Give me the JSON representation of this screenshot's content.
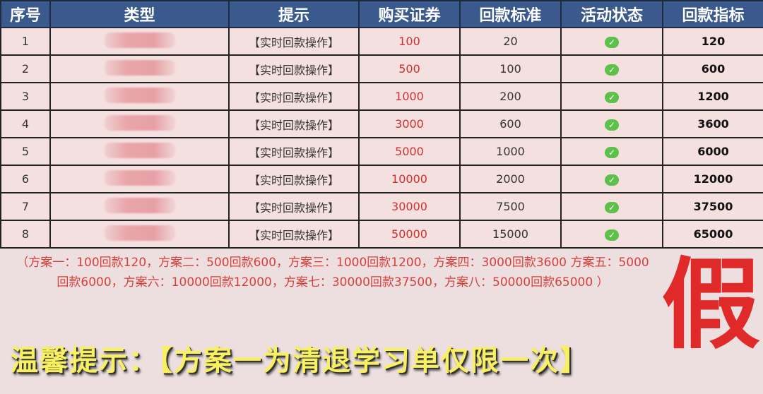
{
  "headers": [
    "序号",
    "类型",
    "提示",
    "购买证券",
    "回款标准",
    "活动状态",
    "回款指标"
  ],
  "rows": [
    {
      "no": "1",
      "hint": "【实时回款操作】",
      "buy": "100",
      "std": "20",
      "target": "120"
    },
    {
      "no": "2",
      "hint": "【实时回款操作】",
      "buy": "500",
      "std": "100",
      "target": "600"
    },
    {
      "no": "3",
      "hint": "【实时回款操作】",
      "buy": "1000",
      "std": "200",
      "target": "1200"
    },
    {
      "no": "4",
      "hint": "【实时回款操作】",
      "buy": "3000",
      "std": "600",
      "target": "3600"
    },
    {
      "no": "5",
      "hint": "【实时回款操作】",
      "buy": "5000",
      "std": "1000",
      "target": "6000"
    },
    {
      "no": "6",
      "hint": "【实时回款操作】",
      "buy": "10000",
      "std": "2000",
      "target": "12000"
    },
    {
      "no": "7",
      "hint": "【实时回款操作】",
      "buy": "30000",
      "std": "7500",
      "target": "37500"
    },
    {
      "no": "8",
      "hint": "【实时回款操作】",
      "buy": "50000",
      "std": "15000",
      "target": "65000"
    }
  ],
  "status_icon": "check-icon",
  "note": "（方案一：100回款120，方案二：500回款600，方案三：1000回款1200，方案四：3000回款3600 方案五：5000回款6000，方案六：10000回款12000，方案七：30000回款37500，方案八：50000回款65000 ）",
  "tip": "温馨提示：【方案一为清退学习单仅限一次】",
  "stamp": "假",
  "colors": {
    "header": "#3a5a8e",
    "red": "#d03030",
    "tip": "#f8f060"
  }
}
